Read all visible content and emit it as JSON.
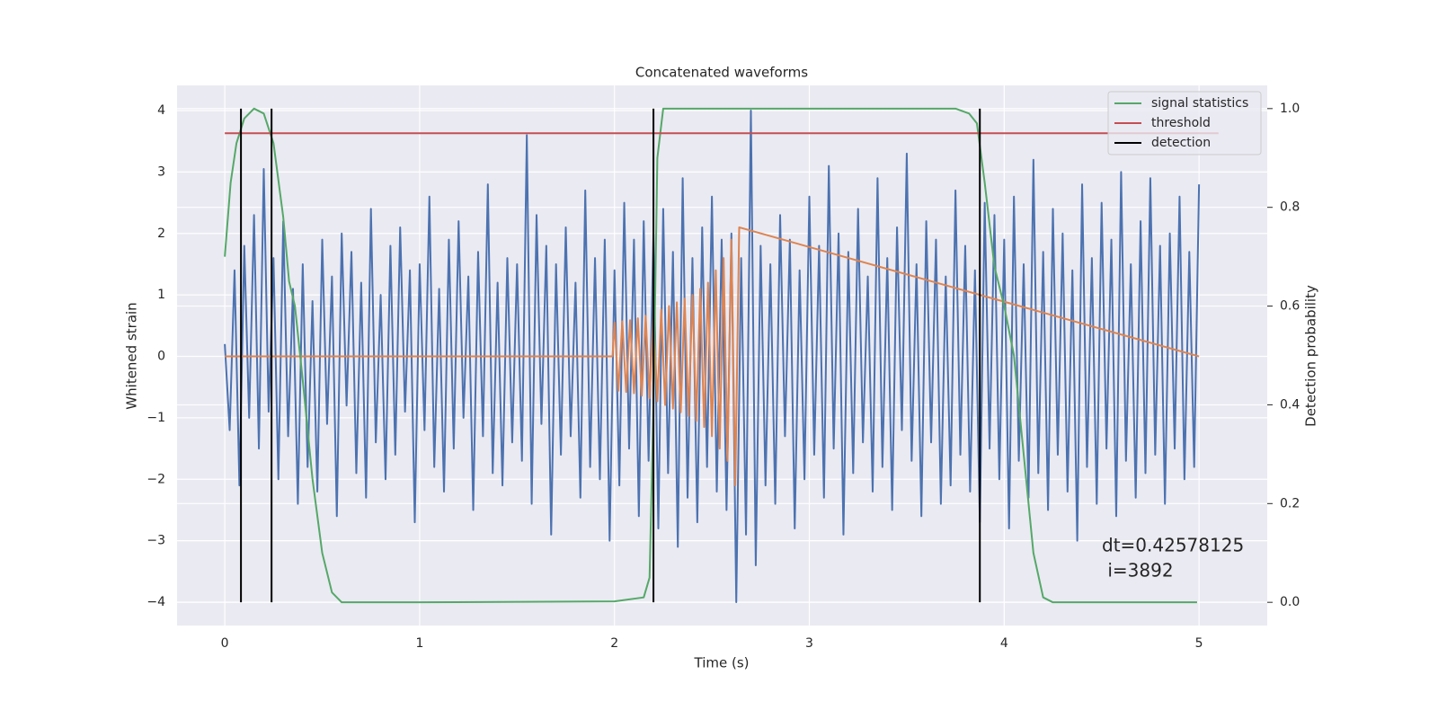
{
  "chart_data": {
    "type": "line",
    "title": "Concatenated waveforms",
    "xlabel": "Time (s)",
    "ylabel": "Whitened strain",
    "y2label": "Detection probability",
    "annotation": [
      "dt=0.42578125",
      " i=3892"
    ],
    "xlim": [
      -0.245,
      5.35
    ],
    "xticks": [
      0,
      1,
      2,
      3,
      4,
      5
    ],
    "ylim": [
      -4.38,
      4.41
    ],
    "yticks": [
      {
        "value": -4,
        "label": "−4"
      },
      {
        "value": -3,
        "label": "−3"
      },
      {
        "value": -2,
        "label": "−2"
      },
      {
        "value": -1,
        "label": "−1"
      },
      0,
      1,
      2,
      3,
      4
    ],
    "y2lim": [
      -0.047,
      1.047
    ],
    "y2ticks": [
      {
        "value": 0,
        "label": "0.0"
      },
      0.2,
      0.4,
      0.6,
      0.8,
      {
        "value": 1,
        "label": "1.0"
      }
    ],
    "grid": true,
    "legend": "upper right",
    "series": [
      {
        "color": "#4c72b0",
        "axis": "y",
        "x": [
          0,
          0.025,
          0.05,
          0.075,
          0.1,
          0.125,
          0.15,
          0.175,
          0.2,
          0.225,
          0.25,
          0.275,
          0.3,
          0.325,
          0.35,
          0.375,
          0.4,
          0.425,
          0.45,
          0.475,
          0.5,
          0.525,
          0.55,
          0.575,
          0.6,
          0.625,
          0.65,
          0.675,
          0.7,
          0.725,
          0.75,
          0.775,
          0.8,
          0.825,
          0.85,
          0.875,
          0.9,
          0.925,
          0.95,
          0.975,
          1,
          1.025,
          1.05,
          1.075,
          1.1,
          1.125,
          1.15,
          1.175,
          1.2,
          1.225,
          1.25,
          1.275,
          1.3,
          1.325,
          1.35,
          1.375,
          1.4,
          1.425,
          1.45,
          1.475,
          1.5,
          1.525,
          1.55,
          1.575,
          1.6,
          1.625,
          1.65,
          1.675,
          1.7,
          1.725,
          1.75,
          1.775,
          1.8,
          1.825,
          1.85,
          1.875,
          1.9,
          1.925,
          1.95,
          1.975,
          2,
          2.025,
          2.05,
          2.075,
          2.1,
          2.125,
          2.15,
          2.175,
          2.2,
          2.225,
          2.25,
          2.275,
          2.3,
          2.325,
          2.35,
          2.375,
          2.4,
          2.425,
          2.45,
          2.475,
          2.5,
          2.525,
          2.55,
          2.575,
          2.6,
          2.625,
          2.65,
          2.675,
          2.7,
          2.725,
          2.75,
          2.775,
          2.8,
          2.825,
          2.85,
          2.875,
          2.9,
          2.925,
          2.95,
          2.975,
          3,
          3.025,
          3.05,
          3.075,
          3.1,
          3.125,
          3.15,
          3.175,
          3.2,
          3.225,
          3.25,
          3.275,
          3.3,
          3.325,
          3.35,
          3.375,
          3.4,
          3.425,
          3.45,
          3.475,
          3.5,
          3.525,
          3.55,
          3.575,
          3.6,
          3.625,
          3.65,
          3.675,
          3.7,
          3.725,
          3.75,
          3.775,
          3.8,
          3.825,
          3.85,
          3.875,
          3.9,
          3.925,
          3.95,
          3.975,
          4,
          4.025,
          4.05,
          4.075,
          4.1,
          4.125,
          4.15,
          4.175,
          4.2,
          4.225,
          4.25,
          4.275,
          4.3,
          4.325,
          4.35,
          4.375,
          4.4,
          4.425,
          4.45,
          4.475,
          4.5,
          4.525,
          4.55,
          4.575,
          4.6,
          4.625,
          4.65,
          4.675,
          4.7,
          4.725,
          4.75,
          4.775,
          4.8,
          4.825,
          4.85,
          4.875,
          4.9,
          4.925,
          4.95,
          4.975,
          5
        ],
        "values": [
          0.2,
          -1.2,
          1.4,
          -2.1,
          1.8,
          -1.0,
          2.3,
          -1.5,
          3.05,
          -0.9,
          1.6,
          -2.0,
          2.2,
          -1.3,
          1.1,
          -2.4,
          1.5,
          -1.8,
          0.9,
          -2.2,
          1.9,
          -1.1,
          1.3,
          -2.6,
          2.0,
          -0.8,
          1.7,
          -1.9,
          1.2,
          -2.3,
          2.4,
          -1.4,
          1.0,
          -2.0,
          1.8,
          -1.6,
          2.1,
          -0.9,
          1.4,
          -2.7,
          1.5,
          -1.2,
          2.6,
          -1.8,
          1.1,
          -2.2,
          1.9,
          -1.5,
          2.2,
          -1.0,
          1.3,
          -2.5,
          1.7,
          -1.3,
          2.8,
          -1.9,
          1.2,
          -2.1,
          1.6,
          -1.4,
          1.5,
          -1.7,
          3.6,
          -2.4,
          2.3,
          -1.1,
          1.8,
          -2.9,
          1.5,
          -1.6,
          2.1,
          -1.3,
          1.2,
          -2.3,
          2.7,
          -1.8,
          1.6,
          -2.0,
          1.9,
          -3.0,
          1.4,
          -2.1,
          2.5,
          -1.5,
          1.9,
          -2.6,
          2.2,
          -1.7,
          2.0,
          -2.8,
          2.4,
          -1.9,
          1.7,
          -3.1,
          2.9,
          -2.3,
          1.6,
          -2.7,
          2.1,
          -1.8,
          2.6,
          -2.2,
          1.9,
          -2.5,
          2.0,
          -4.0,
          1.6,
          -2.9,
          4.0,
          -3.4,
          1.8,
          -2.1,
          1.5,
          -2.4,
          2.3,
          -1.3,
          1.9,
          -2.8,
          1.4,
          -2.0,
          2.6,
          -1.6,
          1.8,
          -2.3,
          3.1,
          -1.5,
          2.0,
          -2.9,
          1.7,
          -1.9,
          2.4,
          -1.4,
          1.3,
          -2.2,
          2.9,
          -1.8,
          1.6,
          -2.5,
          2.1,
          -1.2,
          3.3,
          -1.7,
          1.5,
          -2.6,
          2.2,
          -1.4,
          1.9,
          -2.4,
          1.3,
          -2.1,
          2.7,
          -1.6,
          1.8,
          -2.2,
          1.4,
          -2.7,
          2.5,
          -1.5,
          2.3,
          -2.0,
          1.9,
          -2.8,
          2.6,
          -1.7,
          1.5,
          -2.3,
          3.2,
          -1.9,
          1.7,
          -2.5,
          2.4,
          -1.6,
          2.0,
          -2.2,
          1.4,
          -3.0,
          2.8,
          -1.8,
          1.6,
          -2.4,
          2.5,
          -1.5,
          1.9,
          -2.6,
          3.0,
          -1.7,
          1.5,
          -2.3,
          2.2,
          -1.9,
          2.9,
          -1.6,
          1.8,
          -2.4,
          2.0,
          -1.5,
          2.6,
          -2.0,
          1.7,
          -1.8,
          2.8
        ]
      },
      {
        "color": "#dd8452",
        "axis": "y",
        "x": [
          0,
          1.99,
          2.0,
          2.02,
          2.04,
          2.06,
          2.08,
          2.1,
          2.12,
          2.14,
          2.16,
          2.18,
          2.2,
          2.22,
          2.24,
          2.26,
          2.28,
          2.3,
          2.32,
          2.34,
          2.36,
          2.38,
          2.4,
          2.42,
          2.44,
          2.46,
          2.48,
          2.5,
          2.52,
          2.54,
          2.56,
          2.58,
          2.6,
          2.62,
          2.64,
          5
        ],
        "values": [
          0,
          0,
          0.55,
          -0.56,
          0.57,
          -0.58,
          0.59,
          -0.6,
          0.62,
          -0.64,
          0.66,
          -0.68,
          0.7,
          -0.73,
          0.76,
          -0.79,
          0.82,
          -0.85,
          0.88,
          -0.91,
          0.94,
          -0.97,
          1.0,
          -1.05,
          1.1,
          -1.15,
          1.2,
          -1.3,
          1.4,
          -1.5,
          1.6,
          -1.7,
          1.9,
          -2.1,
          2.1,
          0
        ]
      },
      {
        "name": "signal statistics",
        "color": "#55a868",
        "axis": "y2",
        "x": [
          0,
          0.03,
          0.06,
          0.1,
          0.15,
          0.2,
          0.25,
          0.3,
          0.33,
          0.36,
          0.4,
          0.45,
          0.5,
          0.55,
          0.6,
          1,
          2,
          2.15,
          2.18,
          2.2,
          2.22,
          2.25,
          3,
          3.75,
          3.82,
          3.86,
          3.9,
          3.95,
          4.0,
          4.05,
          4.1,
          4.15,
          4.2,
          4.25,
          4.99
        ],
        "values": [
          0.7,
          0.85,
          0.93,
          0.98,
          1.0,
          0.99,
          0.93,
          0.78,
          0.65,
          0.6,
          0.45,
          0.25,
          0.1,
          0.02,
          0.0,
          0.0,
          0.002,
          0.01,
          0.05,
          0.4,
          0.9,
          1.0,
          1.0,
          1.0,
          0.99,
          0.97,
          0.85,
          0.68,
          0.6,
          0.5,
          0.3,
          0.1,
          0.01,
          0.0,
          0.0
        ]
      },
      {
        "name": "threshold",
        "color": "#c44e52",
        "axis": "y2",
        "x": [
          0,
          5.1
        ],
        "values": [
          0.95,
          0.95
        ]
      },
      {
        "name": "detection",
        "color": "#000000",
        "axis": "y2",
        "type": "vline",
        "x": [
          0.083,
          0.24,
          2.2,
          3.875
        ]
      }
    ]
  }
}
